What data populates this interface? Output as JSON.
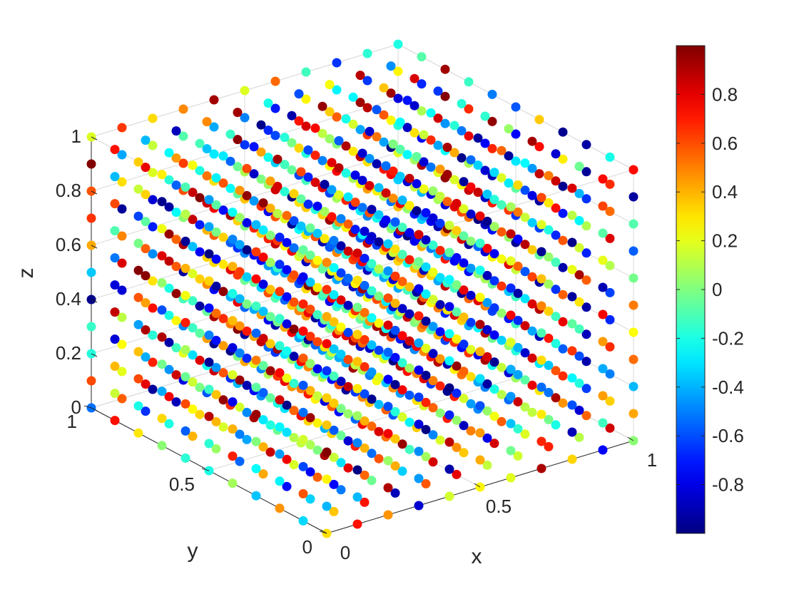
{
  "chart_data": {
    "type": "scatter",
    "title": "",
    "xlabel": "x",
    "ylabel": "y",
    "zlabel": "z",
    "xlim": [
      0,
      1
    ],
    "ylim": [
      0,
      1
    ],
    "zlim": [
      0,
      1
    ],
    "x_ticks": [
      "0",
      "0.5",
      "1"
    ],
    "y_ticks": [
      "0",
      "0.5",
      "1"
    ],
    "z_ticks": [
      "0",
      "0.2",
      "0.4",
      "0.6",
      "0.8",
      "1"
    ],
    "grid": true,
    "view": "3d-isometric",
    "grid_points": {
      "x": [
        0,
        0.1,
        0.2,
        0.3,
        0.4,
        0.5,
        0.6,
        0.7,
        0.8,
        0.9,
        1
      ],
      "y": [
        0,
        0.1,
        0.2,
        0.3,
        0.4,
        0.5,
        0.6,
        0.7,
        0.8,
        0.9,
        1
      ],
      "z": [
        0,
        0.1,
        0.2,
        0.3,
        0.4,
        0.5,
        0.6,
        0.7,
        0.8,
        0.9,
        1
      ]
    },
    "color_value_range": [
      -1,
      1
    ],
    "colormap": "jet",
    "colorbar": {
      "ticks": [
        "0.8",
        "0.6",
        "0.4",
        "0.2",
        "0",
        "-0.2",
        "-0.4",
        "-0.6",
        "-0.8"
      ],
      "tick_values": [
        0.8,
        0.6,
        0.4,
        0.2,
        0,
        -0.2,
        -0.4,
        -0.6,
        -0.8
      ],
      "placement": "right"
    }
  }
}
